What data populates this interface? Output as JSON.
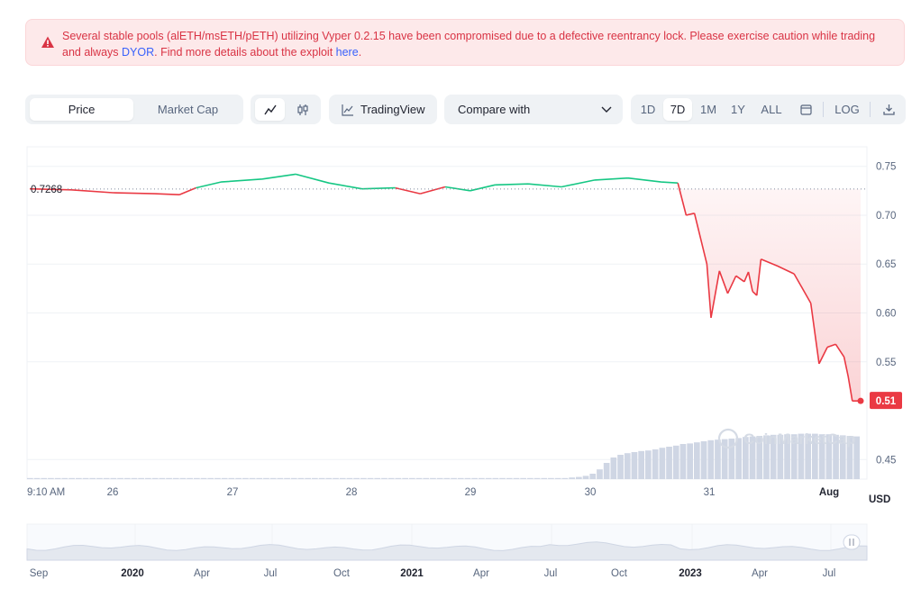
{
  "alert": {
    "text_before": "Several stable pools (alETH/msETH/pETH) utilizing Vyper 0.2.15 have been compromised due to a defective reentrancy lock. Please exercise caution while trading and always ",
    "link_dyor": "DYOR",
    "text_middle": ". Find more details about the exploit ",
    "link_here": "here",
    "text_after": "."
  },
  "toolbar": {
    "price_tab": "Price",
    "market_cap_tab": "Market Cap",
    "line_icon": "line-chart-icon",
    "candle_icon": "candlestick-icon",
    "tradingview_label": "TradingView",
    "compare_label": "Compare with",
    "ranges": [
      "1D",
      "7D",
      "1M",
      "1Y",
      "ALL"
    ],
    "active_range": "7D",
    "calendar_icon": "calendar-icon",
    "log_label": "LOG",
    "download_icon": "download-icon"
  },
  "chart_data": {
    "type": "line",
    "currency": "USD",
    "reference_price": "0.7268",
    "current_price": "0.51",
    "ylim": [
      0.43,
      0.77
    ],
    "y_ticks": [
      "0.75",
      "0.70",
      "0.65",
      "0.60",
      "0.55",
      "0.45"
    ],
    "x_ticks": [
      "9:10 AM",
      "26",
      "27",
      "28",
      "29",
      "30",
      "31",
      "Aug"
    ],
    "series": [
      {
        "points": [
          [
            0.0,
            0.727
          ],
          [
            0.05,
            0.726
          ],
          [
            0.1,
            0.723
          ],
          [
            0.15,
            0.722
          ],
          [
            0.18,
            0.721
          ],
          [
            0.2,
            0.728
          ],
          [
            0.23,
            0.734
          ],
          [
            0.28,
            0.737
          ],
          [
            0.32,
            0.742
          ],
          [
            0.36,
            0.733
          ],
          [
            0.4,
            0.727
          ],
          [
            0.44,
            0.728
          ],
          [
            0.47,
            0.722
          ],
          [
            0.5,
            0.729
          ],
          [
            0.53,
            0.725
          ],
          [
            0.56,
            0.731
          ],
          [
            0.6,
            0.732
          ],
          [
            0.64,
            0.729
          ],
          [
            0.68,
            0.736
          ],
          [
            0.72,
            0.738
          ],
          [
            0.76,
            0.734
          ],
          [
            0.78,
            0.733
          ],
          [
            0.79,
            0.7
          ],
          [
            0.8,
            0.702
          ],
          [
            0.815,
            0.65
          ],
          [
            0.82,
            0.595
          ],
          [
            0.83,
            0.643
          ],
          [
            0.84,
            0.62
          ],
          [
            0.85,
            0.638
          ],
          [
            0.86,
            0.632
          ],
          [
            0.865,
            0.642
          ],
          [
            0.87,
            0.622
          ],
          [
            0.875,
            0.618
          ],
          [
            0.88,
            0.655
          ],
          [
            0.9,
            0.648
          ],
          [
            0.92,
            0.64
          ],
          [
            0.94,
            0.61
          ],
          [
            0.95,
            0.548
          ],
          [
            0.96,
            0.565
          ],
          [
            0.97,
            0.568
          ],
          [
            0.98,
            0.555
          ],
          [
            0.985,
            0.535
          ],
          [
            0.99,
            0.51
          ],
          [
            1.0,
            0.51
          ]
        ]
      }
    ],
    "volume": [
      0.02,
      0.02,
      0.02,
      0.02,
      0.02,
      0.02,
      0.02,
      0.02,
      0.02,
      0.02,
      0.02,
      0.02,
      0.02,
      0.02,
      0.02,
      0.02,
      0.02,
      0.02,
      0.02,
      0.02,
      0.02,
      0.02,
      0.02,
      0.02,
      0.02,
      0.02,
      0.02,
      0.02,
      0.02,
      0.02,
      0.02,
      0.02,
      0.02,
      0.02,
      0.02,
      0.02,
      0.02,
      0.02,
      0.02,
      0.02,
      0.02,
      0.02,
      0.02,
      0.02,
      0.02,
      0.02,
      0.02,
      0.02,
      0.02,
      0.02,
      0.02,
      0.02,
      0.02,
      0.02,
      0.02,
      0.02,
      0.02,
      0.02,
      0.02,
      0.02,
      0.02,
      0.02,
      0.02,
      0.02,
      0.02,
      0.02,
      0.02,
      0.02,
      0.02,
      0.02,
      0.02,
      0.02,
      0.02,
      0.02,
      0.02,
      0.02,
      0.02,
      0.02,
      0.03,
      0.04,
      0.06,
      0.1,
      0.18,
      0.3,
      0.4,
      0.45,
      0.48,
      0.5,
      0.52,
      0.53,
      0.55,
      0.58,
      0.6,
      0.62,
      0.65,
      0.66,
      0.68,
      0.7,
      0.72,
      0.73,
      0.74,
      0.75,
      0.76,
      0.78,
      0.79,
      0.8,
      0.81,
      0.82,
      0.82,
      0.83,
      0.83,
      0.84,
      0.84,
      0.84,
      0.83,
      0.83,
      0.82,
      0.81,
      0.8,
      0.79
    ],
    "navigator": {
      "x_ticks": [
        {
          "label": "Sep",
          "bold": false
        },
        {
          "label": "2020",
          "bold": true
        },
        {
          "label": "Apr",
          "bold": false
        },
        {
          "label": "Jul",
          "bold": false
        },
        {
          "label": "Oct",
          "bold": false
        },
        {
          "label": "2021",
          "bold": true
        },
        {
          "label": "Apr",
          "bold": false
        },
        {
          "label": "Jul",
          "bold": false
        },
        {
          "label": "Oct",
          "bold": false
        },
        {
          "label": "2023",
          "bold": true
        },
        {
          "label": "Apr",
          "bold": false
        },
        {
          "label": "Jul",
          "bold": false
        }
      ]
    },
    "watermark": "CoinMarketCap",
    "colors": {
      "up": "#16c784",
      "down": "#ea3943",
      "grid": "#eff2f5",
      "volume": "#cfd6e4",
      "alert_text": "#d93344",
      "link": "#3861fb"
    }
  }
}
